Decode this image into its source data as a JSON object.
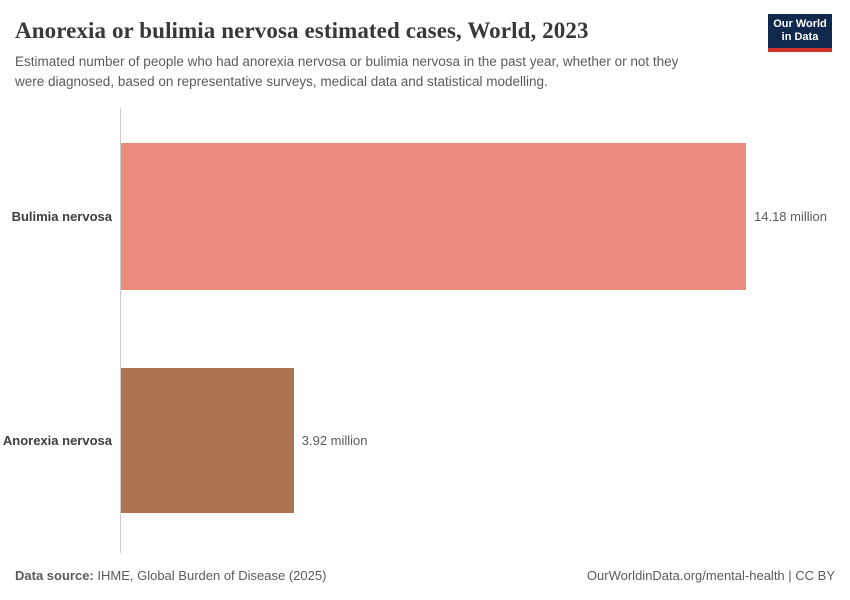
{
  "header": {
    "title": "Anorexia or bulimia nervosa estimated cases, World, 2023",
    "subtitle_line1": "Estimated number of people who had anorexia nervosa or bulimia nervosa in the past year, whether or not they",
    "subtitle_line2": "were diagnosed, based on representative surveys, medical data and statistical modelling.",
    "logo": {
      "line1": "Our World",
      "line2": "in Data",
      "background_color": "#12294e",
      "accent_color": "#d0342c"
    }
  },
  "chart_data": {
    "type": "bar",
    "orientation": "horizontal",
    "title": "Anorexia or bulimia nervosa estimated cases, World, 2023",
    "categories": [
      "Bulimia nervosa",
      "Anorexia nervosa"
    ],
    "values": [
      14.18,
      3.92
    ],
    "unit": "million people",
    "value_labels": [
      "14.18 million",
      "3.92 million"
    ],
    "colors": [
      "#ea8b7d",
      "#ad7353"
    ],
    "xlim": [
      0,
      14.18
    ],
    "grid": false,
    "legend": "none",
    "axis_line_color": "#cbcbcb"
  },
  "footer": {
    "data_source_label": "Data source:",
    "data_source_value": "IHME, Global Burden of Disease (2025)",
    "credit": "OurWorldinData.org/mental-health | CC BY"
  }
}
